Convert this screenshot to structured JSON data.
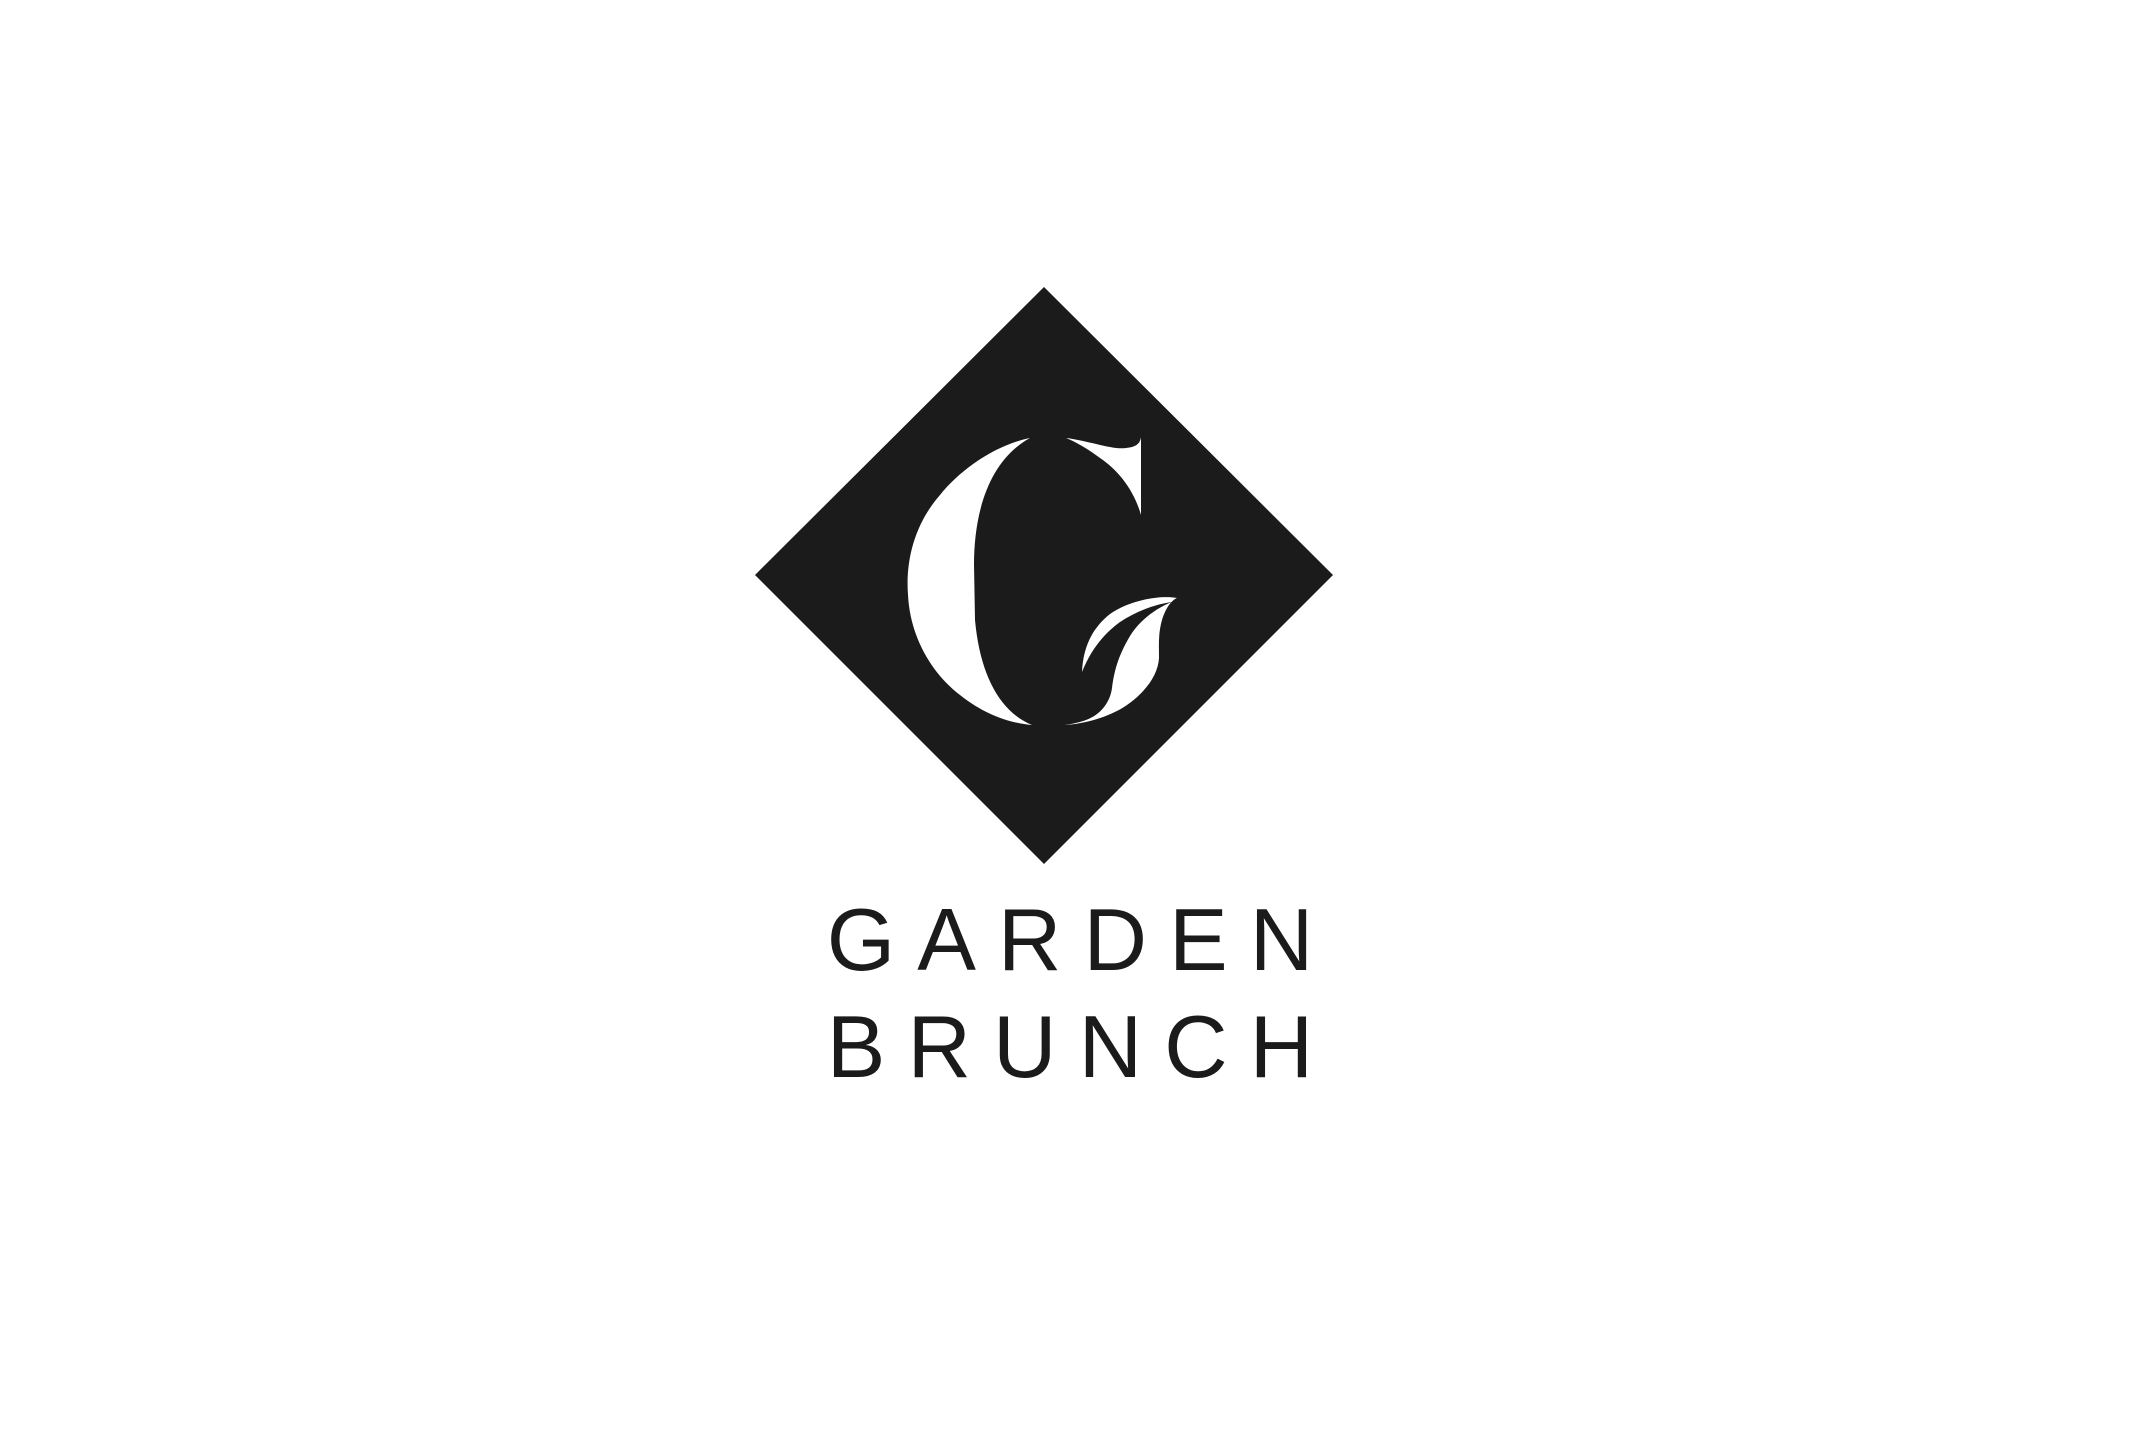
{
  "logo": {
    "emblem": "letter-g-in-diamond",
    "wordmark_line_1": "GARDEN",
    "wordmark_line_2": "BRUNCH"
  },
  "colors": {
    "background": "#ffffff",
    "ink": "#1b1b1b"
  }
}
